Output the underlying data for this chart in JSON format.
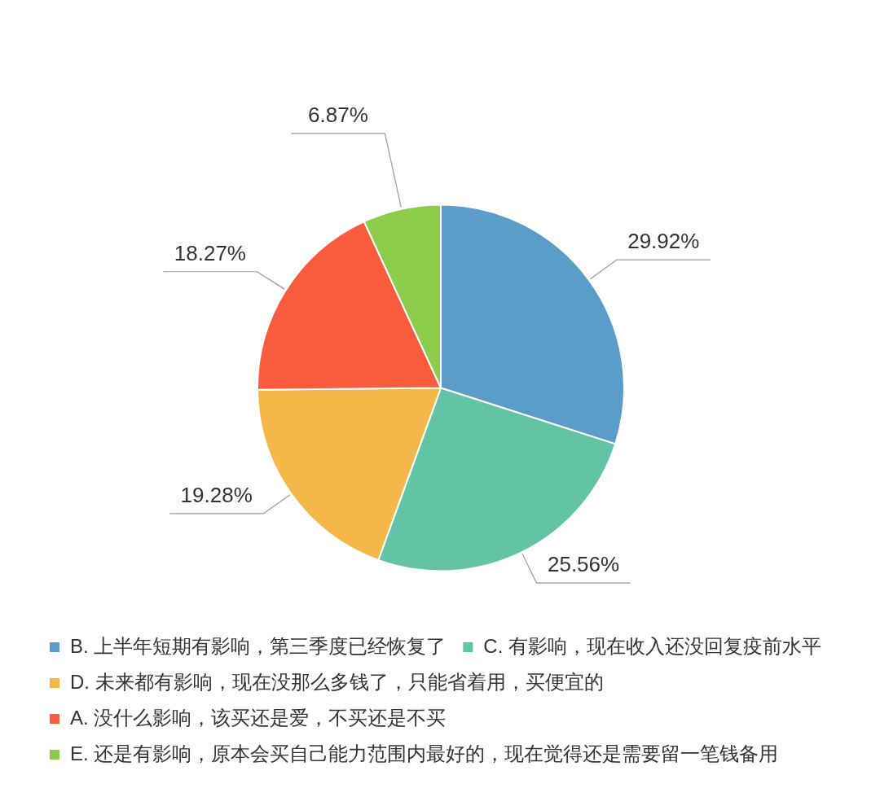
{
  "chart_data": {
    "type": "pie",
    "categories": [
      "B. 上半年短期有影响，第三季度已经恢复了",
      "C. 有影响，现在收入还没回复疫前水平",
      "D. 未来都有影响，现在没那么多钱了，只能省着用，买便宜的",
      "A. 没什么影响，该买还是爱，不买还是不买",
      "E. 还是有影响，原本会买自己能力范围内最好的，现在觉得还是需要留一笔钱备用"
    ],
    "values": [
      29.92,
      25.56,
      19.28,
      18.27,
      6.87
    ],
    "colors": [
      "#5b9cc9",
      "#62c4a5",
      "#f5b74a",
      "#f95c3c",
      "#8dcb4b"
    ],
    "value_labels": [
      "29.92%",
      "25.56%",
      "19.28%",
      "18.27%",
      "6.87%"
    ],
    "legend": "bottom left"
  }
}
